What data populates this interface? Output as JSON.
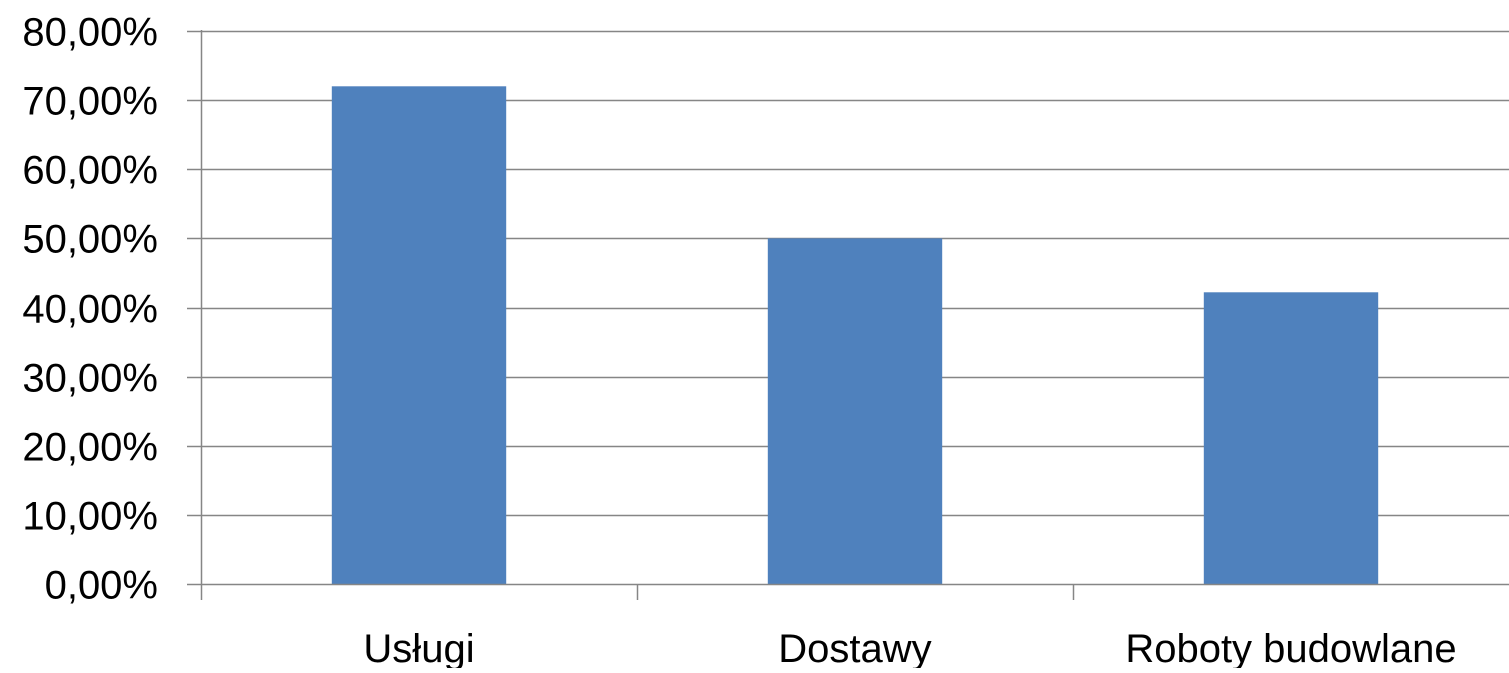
{
  "chart_data": {
    "type": "bar",
    "categories": [
      "Usługi",
      "Dostawy",
      "Roboty budowlane"
    ],
    "values": [
      72,
      50,
      42.2
    ],
    "value_unit": "percent",
    "ylim": [
      0,
      80
    ],
    "y_ticks": [
      0,
      10,
      20,
      30,
      40,
      50,
      60,
      70,
      80
    ],
    "y_tick_labels": [
      "0,00%",
      "10,00%",
      "20,00%",
      "30,00%",
      "40,00%",
      "50,00%",
      "60,00%",
      "70,00%",
      "80,00%"
    ],
    "title": "",
    "xlabel": "",
    "ylabel": "",
    "grid": true,
    "legend": "none",
    "colors": {
      "bar": "#4F81BD",
      "grid": "#868686",
      "axis": "#868686"
    }
  }
}
